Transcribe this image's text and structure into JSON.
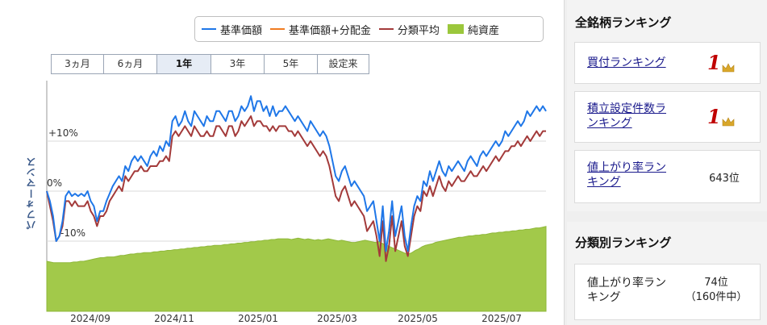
{
  "legend": [
    {
      "label": "基準価額",
      "color": "#1f77e8",
      "kind": "line"
    },
    {
      "label": "基準価額+分配金",
      "color": "#f07b21",
      "kind": "line"
    },
    {
      "label": "分類平均",
      "color": "#a33a3a",
      "kind": "line"
    },
    {
      "label": "純資産",
      "color": "#9bc73c",
      "kind": "box"
    }
  ],
  "tabs": [
    "3ヵ月",
    "6ヵ月",
    "1年",
    "3年",
    "5年",
    "設定来"
  ],
  "active_tab": "1年",
  "chart_data": {
    "type": "line",
    "ylabel": "パフォーマンス",
    "ytick_labels": [
      "+10%",
      "0%",
      "-10%"
    ],
    "xtick_labels": [
      "2024/09",
      "2024/11",
      "2025/01",
      "2025/03",
      "2025/05",
      "2025/07"
    ],
    "grid": true,
    "series": [
      {
        "name": "基準価額",
        "color": "#1f77e8",
        "values": [
          0,
          -2,
          -5,
          -10,
          -9,
          -6,
          -1,
          0,
          -1,
          -0.5,
          -1,
          -0.5,
          -1,
          0,
          -2,
          -3,
          -6,
          -4,
          -4,
          -2,
          -0.5,
          1,
          2,
          3,
          2,
          5,
          4,
          6,
          7,
          6,
          7,
          6,
          5,
          7,
          8,
          7,
          9,
          8,
          10,
          9,
          14,
          15,
          13,
          14,
          16,
          14,
          13,
          16,
          15,
          14,
          13,
          15,
          14,
          14,
          16,
          16,
          15,
          14,
          16,
          16,
          14,
          15,
          17,
          16,
          17,
          19,
          16,
          18,
          18,
          16,
          17,
          15,
          17,
          15,
          16,
          16,
          17,
          16,
          15,
          14,
          15,
          14,
          13,
          12,
          14,
          13,
          12,
          11,
          12,
          11,
          9,
          6,
          3,
          2,
          4,
          5,
          3,
          1,
          2,
          1,
          0,
          -1,
          -4,
          -3,
          -2,
          -6,
          -10,
          -3,
          -12,
          -8,
          -2,
          -9,
          -6,
          -3,
          -9,
          -12,
          -7,
          -3,
          -1,
          -2,
          2,
          1,
          4,
          2,
          4,
          6,
          4,
          3,
          5,
          4,
          5,
          6,
          5,
          4,
          6,
          7,
          6,
          5,
          7,
          8,
          7,
          8,
          9,
          10,
          9,
          10,
          12,
          11,
          12,
          13,
          14,
          13,
          14,
          16,
          15,
          16,
          17,
          16,
          17,
          16
        ]
      },
      {
        "name": "分類平均",
        "color": "#a33a3a",
        "values": [
          0,
          -3,
          -6,
          -10,
          -9,
          -7,
          -2,
          -2,
          -3,
          -2,
          -3,
          -3,
          -3,
          -2,
          -4,
          -5,
          -7,
          -5,
          -5,
          -4,
          -2,
          -1,
          0,
          1,
          0,
          3,
          2,
          3,
          4,
          4,
          5,
          4,
          4,
          5,
          5,
          5,
          6,
          6,
          7,
          6,
          11,
          12,
          11,
          12,
          13,
          12,
          11,
          13,
          12,
          11,
          11,
          12,
          11,
          11,
          13,
          13,
          12,
          11,
          13,
          13,
          11,
          12,
          14,
          13,
          14,
          15,
          13,
          14,
          14,
          13,
          13,
          12,
          13,
          12,
          13,
          13,
          13,
          12,
          12,
          11,
          12,
          11,
          10,
          9,
          10,
          9,
          8,
          7,
          8,
          7,
          5,
          2,
          -1,
          -2,
          0,
          1,
          -1,
          -3,
          -2,
          -3,
          -4,
          -5,
          -8,
          -7,
          -6,
          -9,
          -13,
          -6,
          -14,
          -11,
          -5,
          -12,
          -9,
          -6,
          -11,
          -13,
          -9,
          -5,
          -3,
          -4,
          0,
          -1,
          1,
          -1,
          1,
          3,
          1,
          0,
          2,
          1,
          2,
          3,
          2,
          2,
          3,
          4,
          3,
          3,
          4,
          5,
          4,
          5,
          6,
          7,
          6,
          7,
          8,
          8,
          9,
          9,
          10,
          9,
          10,
          11,
          10,
          11,
          12,
          11,
          12,
          12
        ]
      },
      {
        "name": "純資産",
        "color": "#9bc73c",
        "values": [
          100,
          99,
          98,
          98,
          98,
          98,
          98,
          98,
          99,
          99,
          100,
          100,
          101,
          102,
          103,
          104,
          105,
          105,
          106,
          106,
          106,
          107,
          108,
          108,
          109,
          110,
          110,
          111,
          111,
          112,
          112,
          112,
          113,
          113,
          114,
          114,
          115,
          115,
          116,
          116,
          117,
          117,
          118,
          118,
          119,
          119,
          120,
          120,
          121,
          121,
          122,
          122,
          122,
          123,
          123,
          124,
          124,
          125,
          125,
          126,
          126,
          127,
          127,
          128,
          128,
          129,
          129,
          130,
          130,
          131,
          131,
          131,
          131,
          130,
          131,
          132,
          131,
          130,
          131,
          130,
          129,
          130,
          129,
          130,
          131,
          130,
          129,
          128,
          129,
          128,
          127,
          126,
          126,
          127,
          128,
          129,
          128,
          127,
          126,
          127,
          125,
          123,
          121,
          119,
          117,
          115,
          113,
          111,
          110,
          112,
          115,
          117,
          120,
          122,
          123,
          124,
          126,
          127,
          128,
          129,
          130,
          131,
          132,
          133,
          133,
          134,
          135,
          135,
          136,
          136,
          137,
          137,
          138,
          139,
          139,
          140,
          140,
          141,
          141,
          142,
          142,
          143,
          143,
          144,
          144,
          145,
          146,
          146,
          147,
          148
        ]
      }
    ]
  },
  "sidebar": {
    "overall_title": "全銘柄ランキング",
    "overall": [
      {
        "label": "買付ランキング",
        "value": "1",
        "kind": "crown"
      },
      {
        "label": "積立設定件数ランキング",
        "value": "1",
        "kind": "crown"
      },
      {
        "label": "値上がり率ランキング",
        "value": "643位",
        "kind": "text"
      }
    ],
    "category_title": "分類別ランキング",
    "category": [
      {
        "label": "値上がり率ランキング",
        "value": "74位",
        "sub": "（160件中）"
      }
    ]
  }
}
